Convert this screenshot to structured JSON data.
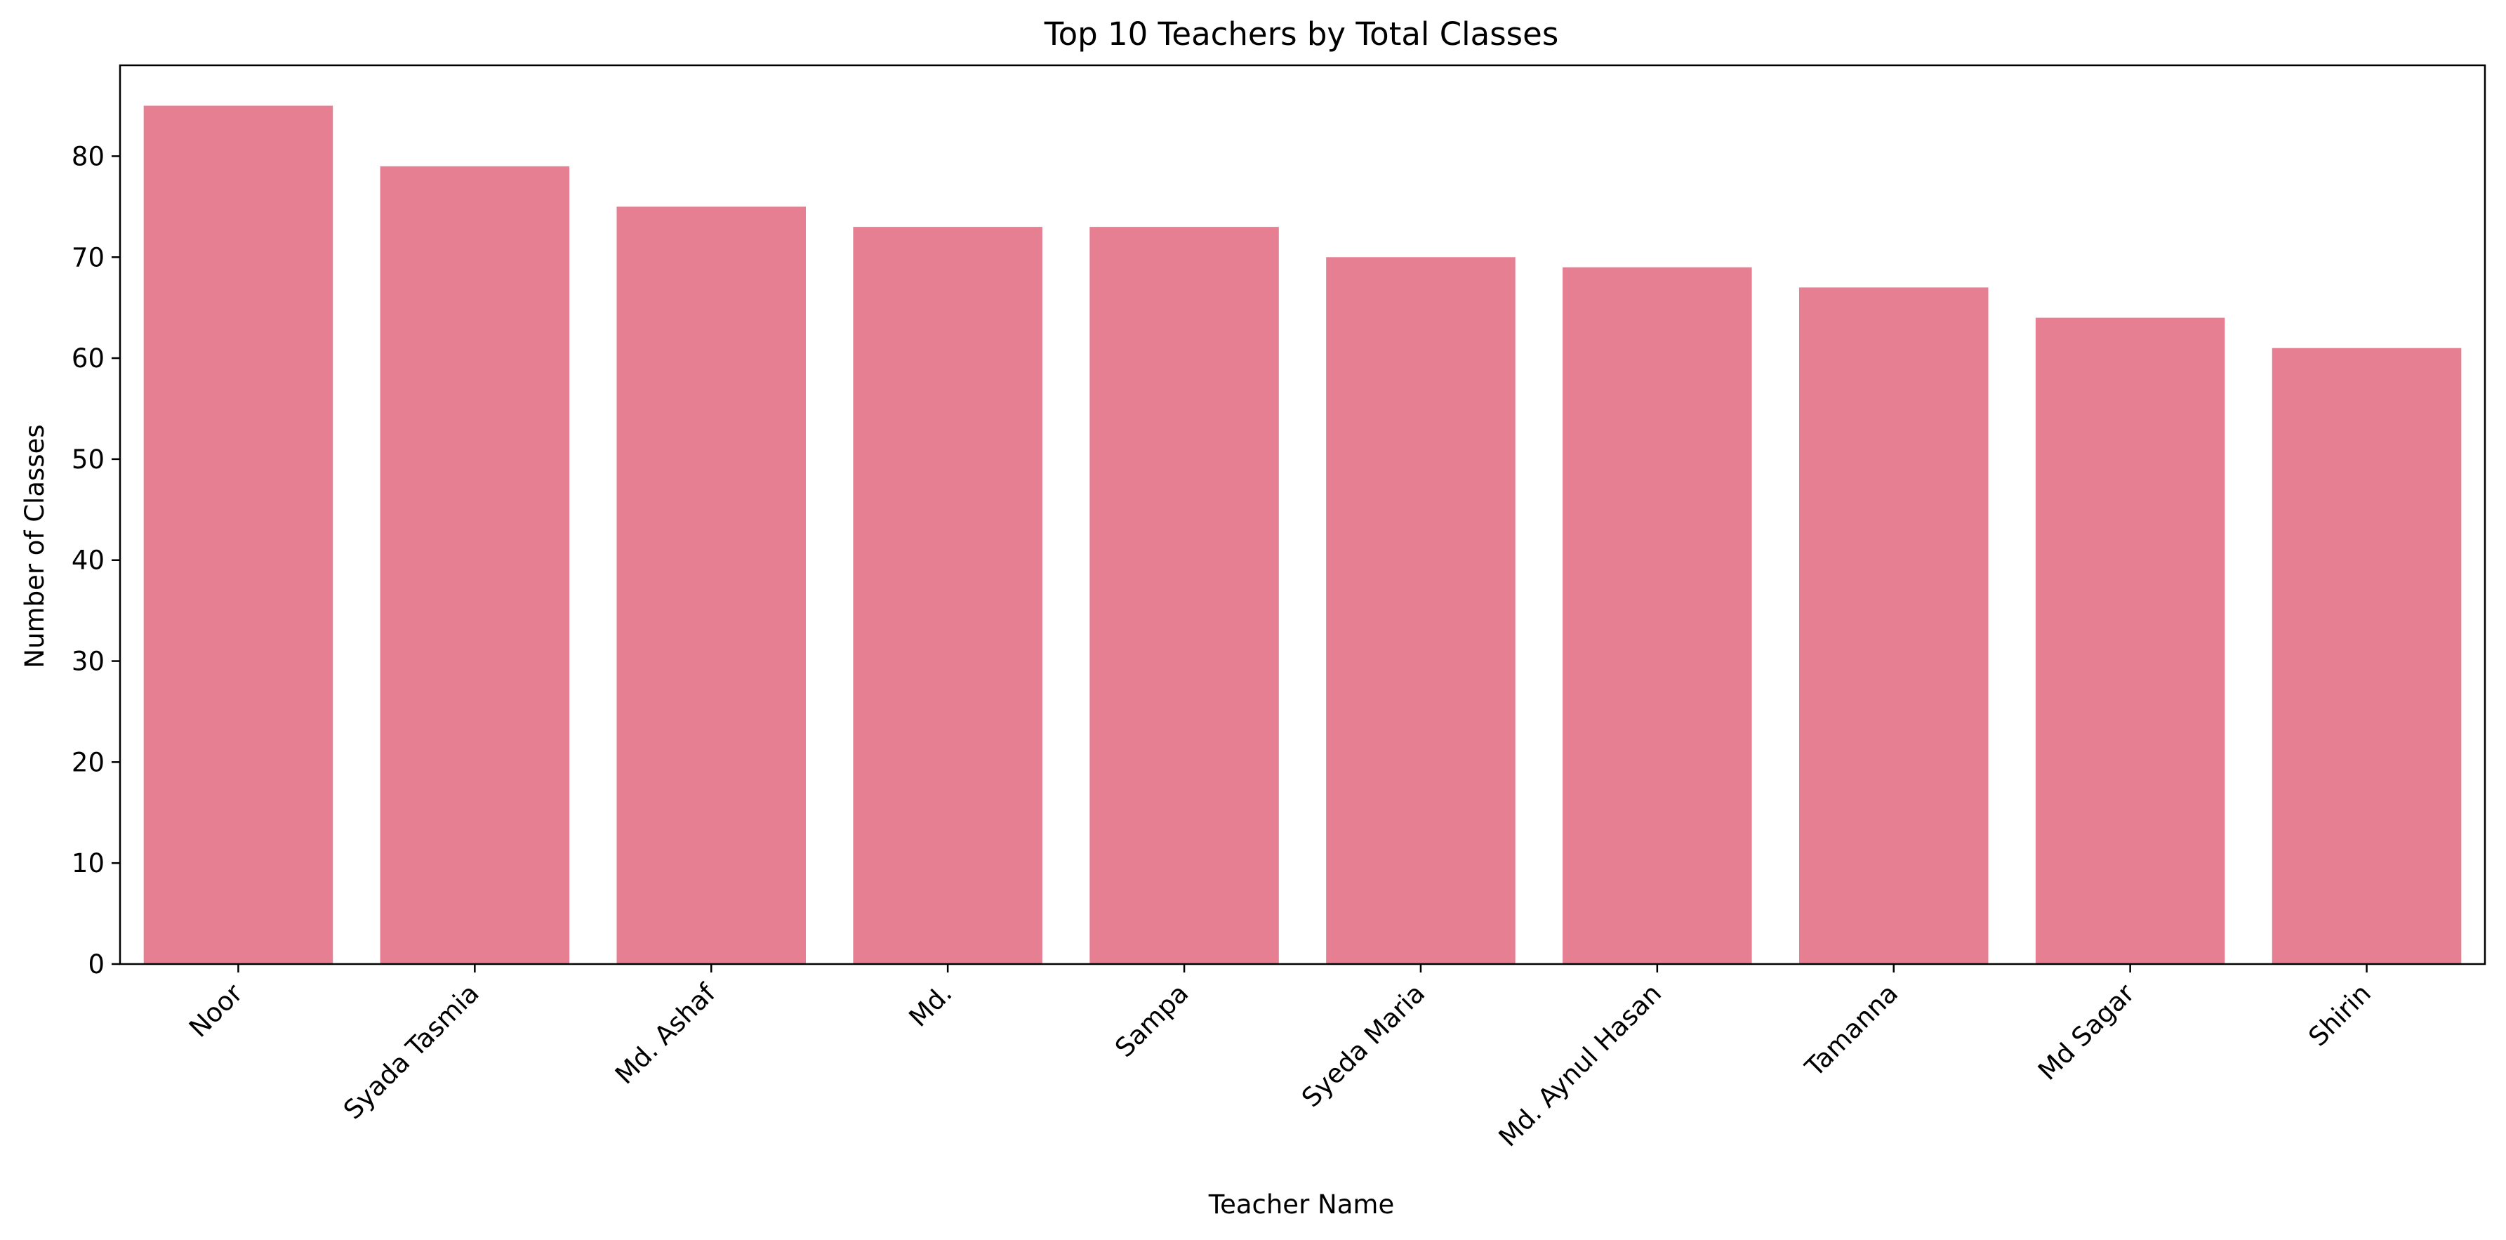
{
  "chart_data": {
    "type": "bar",
    "title": "Top 10 Teachers by Total Classes",
    "xlabel": "Teacher Name",
    "ylabel": "Number of Classes",
    "categories": [
      "Noor",
      "Syada Tasmia",
      "Md. Ashaf",
      "Md.",
      "Sampa",
      "Syeda Maria",
      "Md. Aynul Hasan",
      "Tamanna",
      "Md Sagar",
      "Shirin"
    ],
    "values": [
      85,
      79,
      75,
      73,
      73,
      70,
      69,
      67,
      64,
      61
    ],
    "ylim": [
      0,
      89
    ],
    "yticks": [
      0,
      10,
      20,
      30,
      40,
      50,
      60,
      70,
      80
    ],
    "grid": false,
    "legend": "none",
    "bar_color": "#e77f93"
  }
}
